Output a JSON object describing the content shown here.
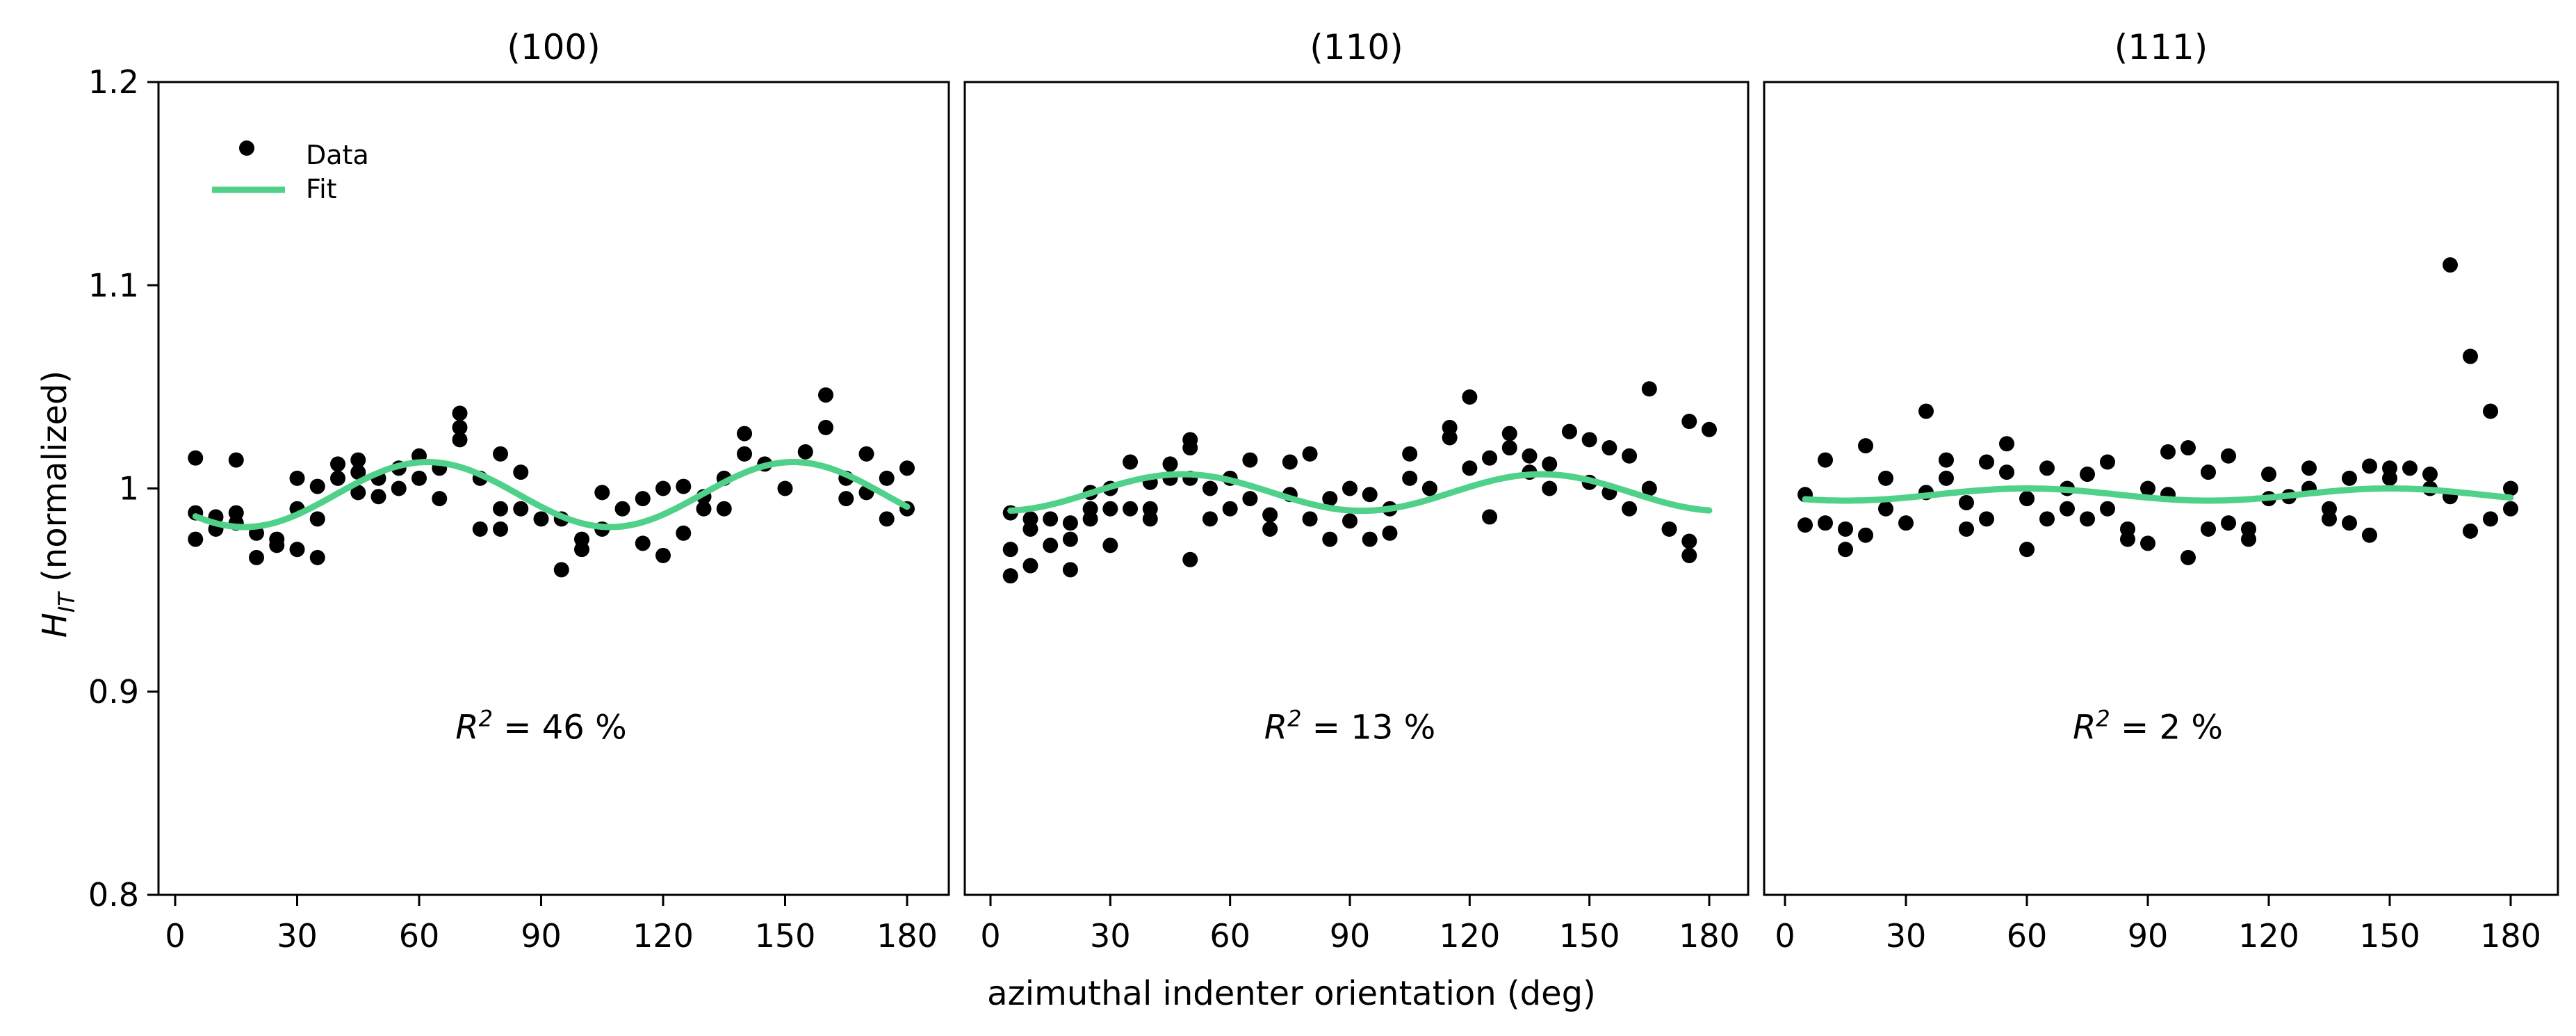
{
  "chart_data": {
    "type": "scatter",
    "xlabel": "azimuthal indenter orientation (deg)",
    "ylabel": {
      "main": "H",
      "sub": "IT",
      "suffix": " (normalized)"
    },
    "ylim": [
      0.8,
      1.2
    ],
    "yticks": [
      0.8,
      0.9,
      1.0,
      1.1,
      1.2
    ],
    "ytick_labels": [
      "0.8",
      "0.9",
      "1",
      "1.1",
      "1.2"
    ],
    "xlim": [
      0,
      180
    ],
    "xticks": [
      0,
      30,
      60,
      90,
      120,
      150,
      180
    ],
    "xtick_labels": [
      "0",
      "30",
      "60",
      "90",
      "120",
      "150",
      "180"
    ],
    "legend": {
      "placement": "top-left",
      "entries": [
        {
          "label": "Data",
          "color": "#000000",
          "marker": "dot"
        },
        {
          "label": "Fit",
          "color": "#4fd18a",
          "marker": "line"
        }
      ]
    },
    "fit_color": "#4fd18a",
    "panels": [
      {
        "title": "(100)",
        "r2_label": "R",
        "r2_sup": "2",
        "r2_value": " = 46 %",
        "fit": {
          "mean": 0.997,
          "amp": 0.016,
          "period": 90,
          "peak": 62
        },
        "points": [
          [
            5,
            0.975
          ],
          [
            5,
            0.988
          ],
          [
            5,
            1.015
          ],
          [
            10,
            0.98
          ],
          [
            10,
            0.986
          ],
          [
            15,
            0.983
          ],
          [
            15,
            1.014
          ],
          [
            15,
            0.988
          ],
          [
            20,
            0.978
          ],
          [
            20,
            0.966
          ],
          [
            25,
            0.975
          ],
          [
            25,
            0.972
          ],
          [
            30,
            0.97
          ],
          [
            30,
            0.99
          ],
          [
            30,
            1.005
          ],
          [
            35,
            0.966
          ],
          [
            35,
            0.985
          ],
          [
            35,
            1.001
          ],
          [
            40,
            1.005
          ],
          [
            40,
            1.012
          ],
          [
            45,
            1.008
          ],
          [
            45,
            1.014
          ],
          [
            45,
            0.998
          ],
          [
            50,
            0.996
          ],
          [
            50,
            1.005
          ],
          [
            55,
            1.01
          ],
          [
            55,
            1.0
          ],
          [
            60,
            1.016
          ],
          [
            60,
            1.005
          ],
          [
            65,
            0.995
          ],
          [
            65,
            1.01
          ],
          [
            70,
            1.037
          ],
          [
            70,
            1.03
          ],
          [
            70,
            1.024
          ],
          [
            75,
            0.98
          ],
          [
            75,
            1.005
          ],
          [
            80,
            1.017
          ],
          [
            80,
            0.99
          ],
          [
            80,
            0.98
          ],
          [
            85,
            1.008
          ],
          [
            85,
            0.99
          ],
          [
            90,
            0.985
          ],
          [
            95,
            0.96
          ],
          [
            95,
            0.985
          ],
          [
            100,
            0.975
          ],
          [
            100,
            0.97
          ],
          [
            105,
            0.998
          ],
          [
            105,
            0.98
          ],
          [
            110,
            0.99
          ],
          [
            115,
            0.995
          ],
          [
            115,
            0.973
          ],
          [
            120,
            0.967
          ],
          [
            120,
            1.0
          ],
          [
            125,
            0.978
          ],
          [
            125,
            1.001
          ],
          [
            130,
            0.99
          ],
          [
            130,
            0.996
          ],
          [
            135,
            1.005
          ],
          [
            135,
            0.99
          ],
          [
            140,
            1.027
          ],
          [
            140,
            1.017
          ],
          [
            145,
            1.012
          ],
          [
            150,
            1.0
          ],
          [
            155,
            1.018
          ],
          [
            160,
            1.046
          ],
          [
            160,
            1.03
          ],
          [
            165,
            1.005
          ],
          [
            165,
            0.995
          ],
          [
            170,
            1.017
          ],
          [
            170,
            0.998
          ],
          [
            175,
            1.005
          ],
          [
            175,
            0.985
          ],
          [
            180,
            1.01
          ],
          [
            180,
            0.99
          ]
        ]
      },
      {
        "title": "(110)",
        "r2_label": "R",
        "r2_sup": "2",
        "r2_value": " = 13 %",
        "fit": {
          "mean": 0.998,
          "amp": 0.009,
          "period": 90,
          "peak": 48
        },
        "points": [
          [
            5,
            0.957
          ],
          [
            5,
            0.97
          ],
          [
            5,
            0.988
          ],
          [
            10,
            0.962
          ],
          [
            10,
            0.98
          ],
          [
            10,
            0.985
          ],
          [
            15,
            0.972
          ],
          [
            15,
            0.985
          ],
          [
            20,
            0.96
          ],
          [
            20,
            0.975
          ],
          [
            20,
            0.983
          ],
          [
            25,
            0.985
          ],
          [
            25,
            0.99
          ],
          [
            25,
            0.998
          ],
          [
            30,
            0.972
          ],
          [
            30,
            0.99
          ],
          [
            30,
            1.0
          ],
          [
            35,
            0.99
          ],
          [
            35,
            1.013
          ],
          [
            40,
            0.99
          ],
          [
            40,
            0.985
          ],
          [
            40,
            1.003
          ],
          [
            45,
            1.005
          ],
          [
            45,
            1.012
          ],
          [
            50,
            1.02
          ],
          [
            50,
            1.024
          ],
          [
            50,
            1.005
          ],
          [
            50,
            0.965
          ],
          [
            55,
            0.985
          ],
          [
            55,
            1.0
          ],
          [
            60,
            0.99
          ],
          [
            60,
            1.005
          ],
          [
            65,
            0.995
          ],
          [
            65,
            1.014
          ],
          [
            70,
            0.98
          ],
          [
            70,
            0.987
          ],
          [
            75,
            1.013
          ],
          [
            75,
            0.997
          ],
          [
            80,
            1.017
          ],
          [
            80,
            0.985
          ],
          [
            85,
            0.975
          ],
          [
            85,
            0.995
          ],
          [
            90,
            0.984
          ],
          [
            90,
            1.0
          ],
          [
            95,
            0.975
          ],
          [
            95,
            0.997
          ],
          [
            100,
            0.978
          ],
          [
            100,
            0.99
          ],
          [
            105,
            1.017
          ],
          [
            105,
            1.005
          ],
          [
            110,
            1.0
          ],
          [
            115,
            1.025
          ],
          [
            115,
            1.03
          ],
          [
            120,
            1.045
          ],
          [
            120,
            1.01
          ],
          [
            125,
            0.986
          ],
          [
            125,
            1.015
          ],
          [
            130,
            1.027
          ],
          [
            130,
            1.02
          ],
          [
            135,
            1.016
          ],
          [
            135,
            1.008
          ],
          [
            140,
            1.012
          ],
          [
            140,
            1.0
          ],
          [
            145,
            1.028
          ],
          [
            150,
            1.024
          ],
          [
            150,
            1.003
          ],
          [
            155,
            1.02
          ],
          [
            155,
            0.998
          ],
          [
            160,
            1.016
          ],
          [
            160,
            0.99
          ],
          [
            165,
            1.049
          ],
          [
            165,
            1.0
          ],
          [
            170,
            0.98
          ],
          [
            175,
            1.033
          ],
          [
            175,
            0.967
          ],
          [
            175,
            0.974
          ],
          [
            180,
            1.029
          ]
        ]
      },
      {
        "title": "(111)",
        "r2_label": "R",
        "r2_sup": "2",
        "r2_value": " = 2 %",
        "fit": {
          "mean": 0.997,
          "amp": 0.003,
          "period": 90,
          "peak": 60
        },
        "points": [
          [
            5,
            0.982
          ],
          [
            5,
            0.997
          ],
          [
            10,
            0.983
          ],
          [
            10,
            1.014
          ],
          [
            15,
            0.97
          ],
          [
            15,
            0.98
          ],
          [
            20,
            1.021
          ],
          [
            20,
            0.977
          ],
          [
            25,
            0.99
          ],
          [
            25,
            1.005
          ],
          [
            30,
            0.983
          ],
          [
            35,
            1.038
          ],
          [
            35,
            0.998
          ],
          [
            40,
            1.014
          ],
          [
            40,
            1.005
          ],
          [
            45,
            0.98
          ],
          [
            45,
            0.993
          ],
          [
            50,
            1.013
          ],
          [
            50,
            0.985
          ],
          [
            55,
            1.022
          ],
          [
            55,
            1.008
          ],
          [
            60,
            0.97
          ],
          [
            60,
            0.995
          ],
          [
            65,
            1.01
          ],
          [
            65,
            0.985
          ],
          [
            70,
            0.99
          ],
          [
            70,
            1.0
          ],
          [
            75,
            1.007
          ],
          [
            75,
            0.985
          ],
          [
            80,
            1.013
          ],
          [
            80,
            0.99
          ],
          [
            85,
            0.975
          ],
          [
            85,
            0.98
          ],
          [
            90,
            1.0
          ],
          [
            90,
            0.973
          ],
          [
            95,
            1.018
          ],
          [
            95,
            0.997
          ],
          [
            100,
            1.02
          ],
          [
            100,
            0.966
          ],
          [
            105,
            1.008
          ],
          [
            105,
            0.98
          ],
          [
            110,
            1.016
          ],
          [
            110,
            0.983
          ],
          [
            115,
            0.975
          ],
          [
            115,
            0.98
          ],
          [
            120,
            0.995
          ],
          [
            120,
            1.007
          ],
          [
            125,
            0.996
          ],
          [
            130,
            1.01
          ],
          [
            130,
            1.0
          ],
          [
            135,
            0.985
          ],
          [
            135,
            0.99
          ],
          [
            140,
            1.005
          ],
          [
            140,
            0.983
          ],
          [
            145,
            1.011
          ],
          [
            145,
            0.977
          ],
          [
            150,
            1.01
          ],
          [
            150,
            1.005
          ],
          [
            155,
            1.01
          ],
          [
            160,
            1.007
          ],
          [
            160,
            1.0
          ],
          [
            165,
            1.11
          ],
          [
            165,
            0.996
          ],
          [
            170,
            1.065
          ],
          [
            170,
            0.979
          ],
          [
            175,
            1.038
          ],
          [
            175,
            0.985
          ],
          [
            180,
            1.0
          ],
          [
            180,
            0.99
          ]
        ]
      }
    ]
  }
}
